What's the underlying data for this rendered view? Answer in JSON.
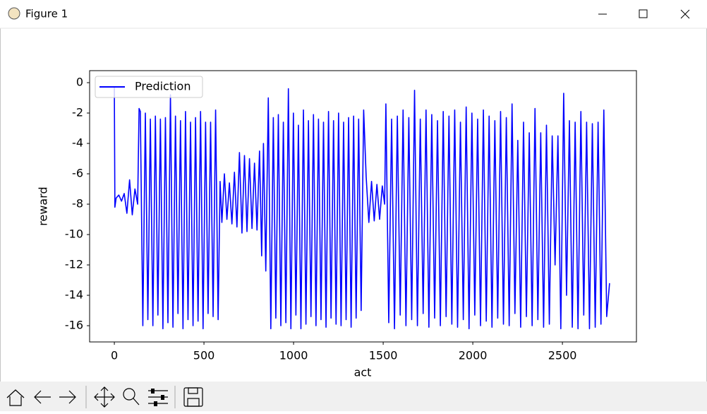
{
  "window": {
    "title": "Figure 1"
  },
  "chart_data": {
    "type": "line",
    "xlabel": "act",
    "ylabel": "reward",
    "x": [
      0,
      3,
      10,
      25,
      40,
      55,
      70,
      85,
      100,
      115,
      130,
      138,
      145,
      159,
      173,
      187,
      201,
      215,
      229,
      243,
      257,
      271,
      285,
      299,
      313,
      327,
      341,
      355,
      369,
      383,
      397,
      411,
      425,
      439,
      453,
      467,
      481,
      495,
      509,
      523,
      537,
      551,
      565,
      579,
      590,
      600,
      614,
      628,
      642,
      656,
      670,
      684,
      698,
      712,
      726,
      740,
      754,
      768,
      782,
      796,
      810,
      822,
      832,
      845,
      859,
      873,
      887,
      901,
      915,
      929,
      943,
      957,
      971,
      985,
      999,
      1013,
      1027,
      1041,
      1055,
      1069,
      1083,
      1097,
      1111,
      1125,
      1139,
      1153,
      1167,
      1181,
      1195,
      1209,
      1223,
      1237,
      1251,
      1265,
      1279,
      1293,
      1307,
      1321,
      1335,
      1349,
      1363,
      1377,
      1391,
      1405,
      1420,
      1435,
      1450,
      1465,
      1480,
      1495,
      1508,
      1515,
      1531,
      1547,
      1563,
      1579,
      1595,
      1611,
      1627,
      1643,
      1659,
      1675,
      1691,
      1707,
      1723,
      1739,
      1755,
      1771,
      1787,
      1803,
      1819,
      1835,
      1851,
      1867,
      1883,
      1899,
      1915,
      1931,
      1947,
      1963,
      1979,
      1995,
      2011,
      2027,
      2043,
      2059,
      2075,
      2091,
      2107,
      2123,
      2139,
      2155,
      2171,
      2187,
      2203,
      2219,
      2235,
      2251,
      2267,
      2283,
      2299,
      2315,
      2331,
      2347,
      2363,
      2379,
      2395,
      2411,
      2427,
      2443,
      2459,
      2475,
      2491,
      2507,
      2523,
      2539,
      2555,
      2571,
      2587,
      2603,
      2619,
      2635,
      2651,
      2667,
      2683,
      2699,
      2715,
      2731,
      2747,
      2763
    ],
    "series": [
      {
        "name": "Prediction",
        "color": "#0000ff",
        "values": [
          -0.3,
          -8.2,
          -7.6,
          -7.4,
          -7.8,
          -7.3,
          -8.6,
          -6.4,
          -8.7,
          -7.0,
          -8.0,
          -1.7,
          -1.9,
          -16,
          -2,
          -15.6,
          -2.4,
          -16,
          -2.2,
          -15.3,
          -2.4,
          -16.2,
          -2.3,
          -15.8,
          -0.8,
          -16.1,
          -2.2,
          -15.2,
          -2.5,
          -16.2,
          -1.9,
          -15.6,
          -2.6,
          -16,
          -2.3,
          -15.7,
          -1.9,
          -16.2,
          -2.6,
          -15.2,
          -2.6,
          -15.4,
          -1.8,
          -15.6,
          -6.5,
          -9.2,
          -6.0,
          -9.0,
          -6.6,
          -9.3,
          -5.9,
          -9.5,
          -4.6,
          -9.9,
          -4.8,
          -9.8,
          -5.0,
          -9.6,
          -5.3,
          -9.7,
          -4.5,
          -11.4,
          -4.0,
          -12.4,
          -1.0,
          -16.2,
          -2.3,
          -15.5,
          -2.1,
          -16.0,
          -2.6,
          -15.8,
          -0.4,
          -16.2,
          -2.0,
          -15.3,
          -2.8,
          -16.2,
          -1.8,
          -15.9,
          -2.5,
          -15.4,
          -2.1,
          -16.0,
          -2.4,
          -15.6,
          -2.6,
          -16.1,
          -1.9,
          -15.5,
          -2.5,
          -15.9,
          -2.0,
          -16.0,
          -2.6,
          -15.6,
          -2.3,
          -16.1,
          -2.2,
          -15.5,
          -2.4,
          -15.0,
          -1.8,
          -6.2,
          -9.2,
          -6.5,
          -9.1,
          -6.7,
          -9.0,
          -6.8,
          -8.0,
          -1.4,
          -15.8,
          -2.4,
          -16.2,
          -2.2,
          -15.3,
          -1.8,
          -16.0,
          -2.3,
          -15.6,
          -0.5,
          -16.0,
          -2.4,
          -15.2,
          -1.8,
          -16.1,
          -2.1,
          -15.5,
          -2.5,
          -16.0,
          -1.9,
          -15.4,
          -2.2,
          -15.9,
          -1.8,
          -16.1,
          -2.6,
          -15.6,
          -1.6,
          -16.2,
          -2.0,
          -15.3,
          -2.4,
          -16.0,
          -1.8,
          -15.7,
          -2.2,
          -16.1,
          -2.5,
          -15.5,
          -1.9,
          -15.9,
          -2.3,
          -16.0,
          -1.4,
          -15.2,
          -3.8,
          -16.1,
          -2.6,
          -15.4,
          -3.3,
          -16.0,
          -1.7,
          -15.6,
          -3.3,
          -16.1,
          -2.8,
          -15.9,
          -3.5,
          -12.0,
          -3.5,
          -16.2,
          -0.7,
          -14.0,
          -2.5,
          -16.1,
          -2.6,
          -16.2,
          -1.9,
          -15.3,
          -2.6,
          -16.2,
          -2.7,
          -16.1,
          -2.6,
          -15.9,
          -1.8,
          -15.4,
          -13.2
        ]
      }
    ],
    "xlim": [
      -138,
      2913
    ],
    "xticks": [
      0,
      500,
      1000,
      1500,
      2000,
      2500
    ],
    "ylim": [
      -17.07,
      0.79
    ],
    "yticks": [
      0,
      -2,
      -4,
      -6,
      -8,
      -10,
      -12,
      -14,
      -16
    ],
    "legend": "upper left"
  }
}
